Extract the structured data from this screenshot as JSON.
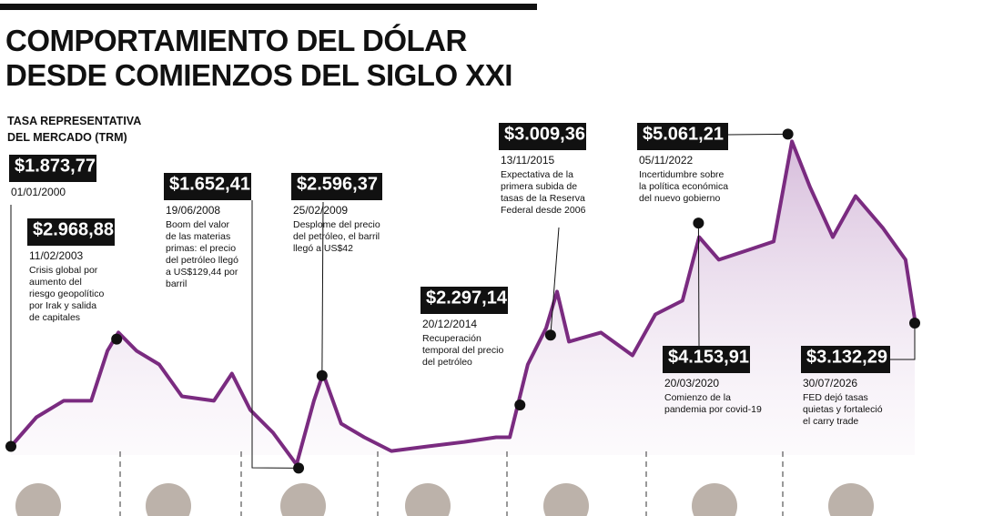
{
  "title": [
    "COMPORTAMIENTO DEL DÓLAR",
    "DESDE COMIENZOS DEL SIGLO XXI"
  ],
  "chart_data": {
    "type": "line",
    "subtitle": [
      "TASA REPRESENTATIVA",
      "DEL MERCADO (TRM)"
    ],
    "color": "#7a2b80",
    "xlim": [
      2000,
      2026.58
    ],
    "ylim": [
      1600,
      5130
    ],
    "x": [
      2000.0,
      2000.75,
      2001.55,
      2002.36,
      2002.84,
      2003.16,
      2003.69,
      2004.36,
      2005.03,
      2005.97,
      2006.5,
      2007.04,
      2007.71,
      2008.4,
      2008.91,
      2009.18,
      2009.71,
      2010.39,
      2011.19,
      2012.26,
      2013.33,
      2014.27,
      2014.67,
      2015.2,
      2015.74,
      2016.06,
      2016.41,
      2017.35,
      2018.28,
      2018.95,
      2019.75,
      2020.24,
      2020.82,
      2021.63,
      2022.43,
      2022.97,
      2023.5,
      2024.17,
      2024.84,
      2025.64,
      2026.31,
      2026.58
    ],
    "values": [
      1874,
      2171,
      2339,
      2339,
      2850,
      3036,
      2850,
      2710,
      2385,
      2339,
      2617,
      2246,
      2013,
      1688,
      2339,
      2617,
      2106,
      1967,
      1827,
      1874,
      1920,
      1967,
      1967,
      2710,
      3082,
      3454,
      2943,
      3036,
      2803,
      3221,
      3361,
      4011,
      3779,
      3872,
      3965,
      4987,
      4522,
      4011,
      4429,
      4104,
      3779,
      3175
    ],
    "annotations": [
      {
        "x": 2000.0,
        "value": 1873.77,
        "value_label": "$1.873,77",
        "date": "01/01/2000",
        "text": []
      },
      {
        "x": 2003.11,
        "value": 2968.88,
        "value_label": "$2.968,88",
        "date": "11/02/2003",
        "text": [
          "Crisis global por",
          "aumento del",
          "riesgo geopolítico",
          "por Irak y salida",
          "de capitales"
        ]
      },
      {
        "x": 2008.46,
        "value": 1652.41,
        "value_label": "$1.652,41",
        "date": "19/06/2008",
        "text": [
          "Boom del valor",
          "de las materias",
          "primas: el precio",
          "del petróleo llegó",
          "a US$129,44 por",
          "barril"
        ]
      },
      {
        "x": 2009.15,
        "value": 2596.37,
        "value_label": "$2.596,37",
        "date": "25/02/2009",
        "text": [
          "Desplome del precio",
          "del petróleo, el barril",
          "llegó a US$42"
        ]
      },
      {
        "x": 2014.97,
        "value": 2297.14,
        "value_label": "$2.297,14",
        "date": "20/12/2014",
        "text": [
          "Recuperación",
          "temporal del precio",
          "del petróleo"
        ]
      },
      {
        "x": 2015.87,
        "value": 3009.36,
        "value_label": "$3.009,36",
        "date": "13/11/2015",
        "text": [
          "Expectativa de la",
          "primera subida de",
          "tasas de la Reserva",
          "Federal desde 2006"
        ]
      },
      {
        "x": 2022.85,
        "value": 5061.21,
        "value_label": "$5.061,21",
        "date": "05/11/2022",
        "text": [
          "Incertidumbre sobre",
          "la política económica",
          "del nuevo gobierno"
        ]
      },
      {
        "x": 2020.22,
        "value": 4153.91,
        "value_label": "$4.153,91",
        "date": "20/03/2020",
        "text": [
          "Comienzo de la",
          "pandemia por covid-19"
        ]
      },
      {
        "x": 2026.58,
        "value": 3132.29,
        "value_label": "$3.132,29",
        "date": "30/07/2026",
        "text": [
          "FED dejó tasas",
          "quietas y fortaleció",
          "el carry trade"
        ]
      }
    ]
  }
}
